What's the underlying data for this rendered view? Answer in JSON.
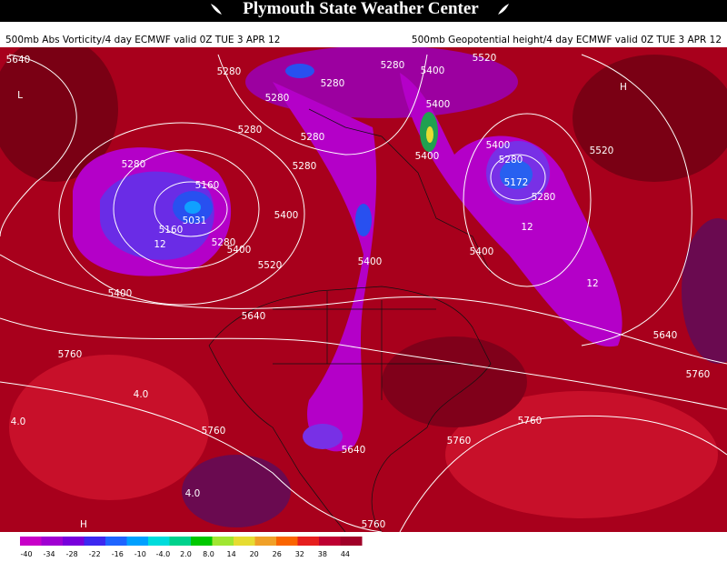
{
  "header": {
    "title": "Plymouth State Weather Center",
    "subtitle_left": "500mb Abs Vorticity/4 day ECMWF valid 0Z TUE 3 APR 12",
    "subtitle_right": "500mb Geopotential height/4 day ECMWF valid 0Z TUE 3 APR 12"
  },
  "map": {
    "contour_labels": [
      "5640",
      "5280",
      "5280",
      "5280",
      "5280",
      "5400",
      "5520",
      "5400",
      "5280",
      "5280",
      "5280",
      "5400",
      "5400",
      "5280",
      "5172",
      "5280",
      "5520",
      "5280",
      "5160",
      "5031",
      "5160",
      "5280",
      "5400",
      "5400",
      "5520",
      "5400",
      "5400",
      "5400",
      "5640",
      "5640",
      "5760",
      "5760",
      "5760",
      "5760",
      "5760",
      "5640",
      "5760",
      "4.0",
      "4.0",
      "4.0",
      "12",
      "12",
      "12",
      "L",
      "H",
      "H"
    ]
  },
  "colorbar": {
    "labels": [
      "-40",
      "-34",
      "-28",
      "-22",
      "-16",
      "-10",
      "-4.0",
      "2.0",
      "8.0",
      "14",
      "20",
      "26",
      "32",
      "38",
      "44"
    ],
    "colors": [
      "#c800c8",
      "#a000d2",
      "#7800dc",
      "#3c28f0",
      "#1e64ff",
      "#00a0ff",
      "#00dcdc",
      "#00d28c",
      "#00c800",
      "#a0e632",
      "#e6dc32",
      "#f0a028",
      "#fa6400",
      "#e61e1e",
      "#be0032",
      "#a00028"
    ]
  }
}
